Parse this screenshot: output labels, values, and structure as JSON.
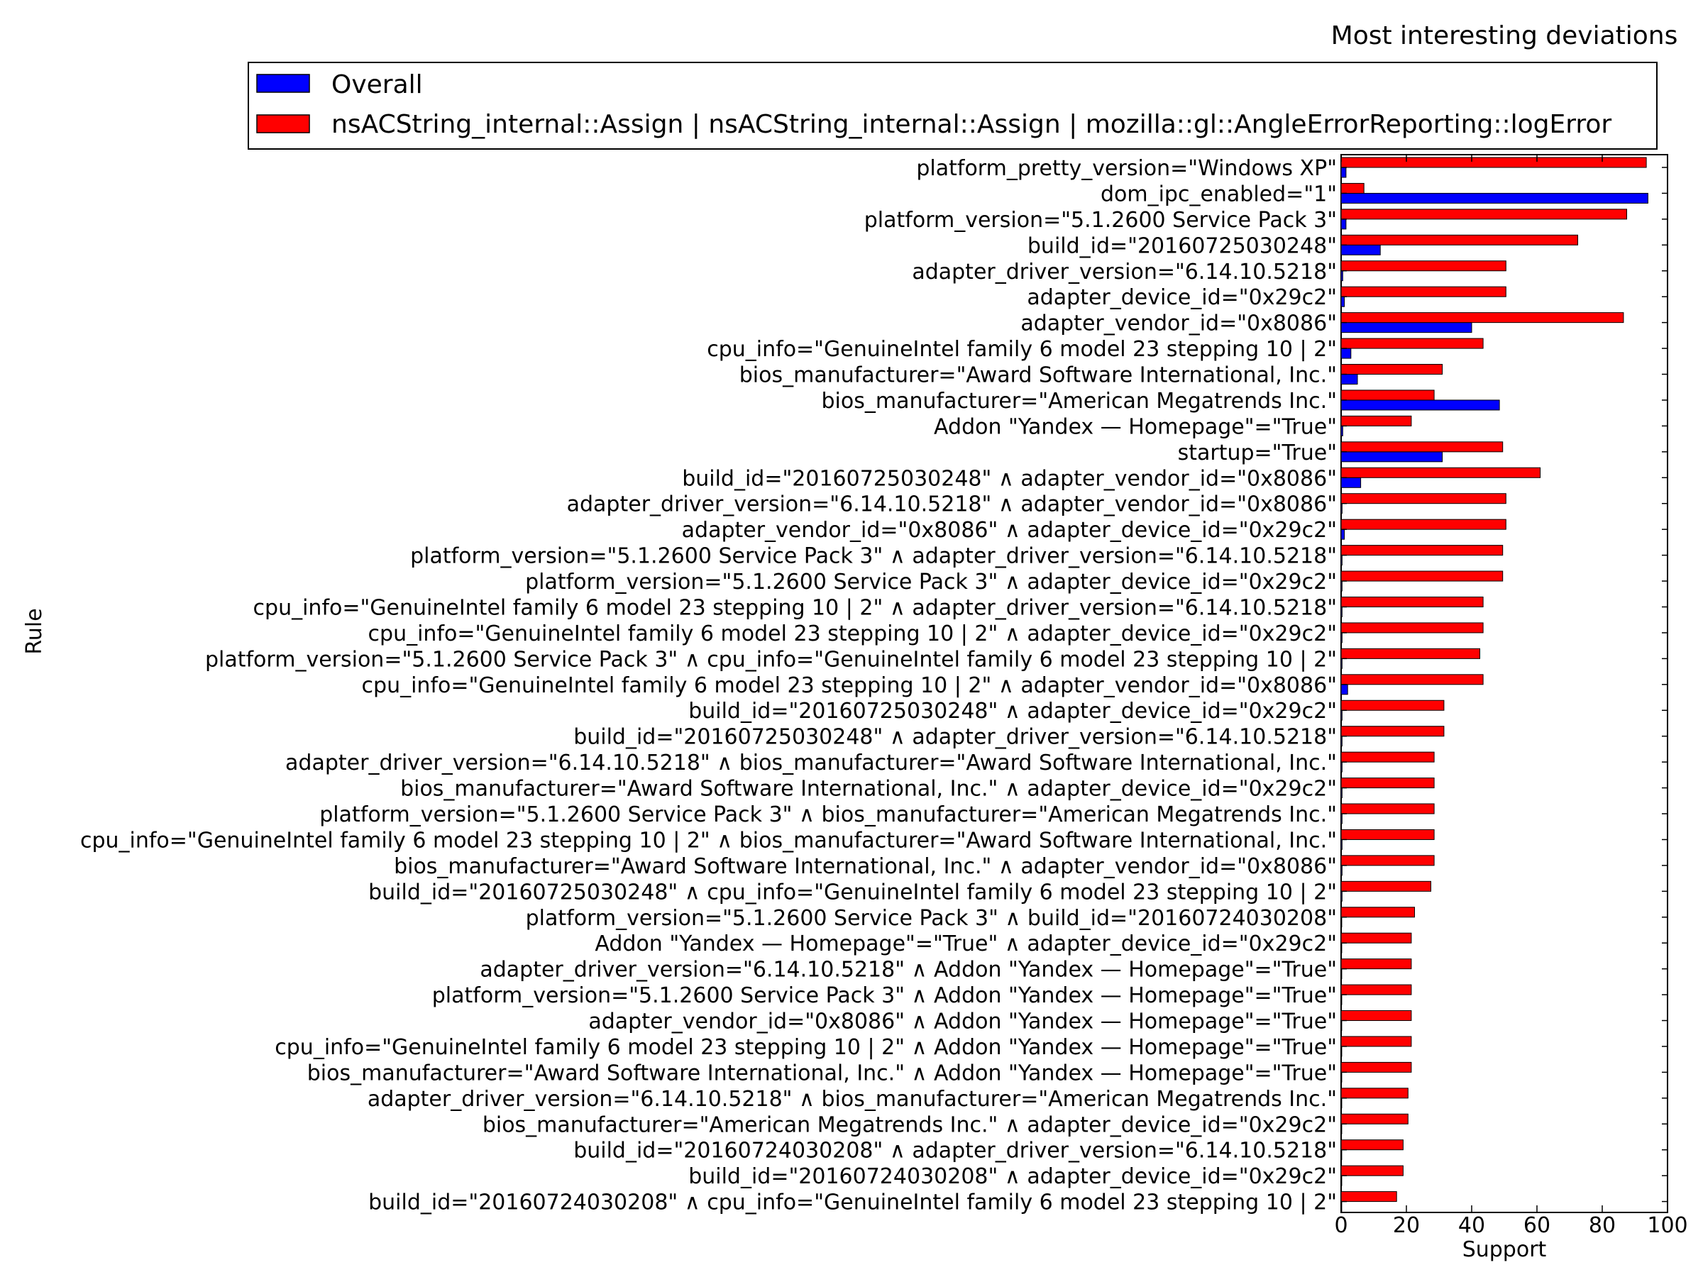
{
  "chart_data": {
    "type": "bar",
    "orientation": "horizontal",
    "title": "Most interesting deviations",
    "xlabel": "Support",
    "ylabel": "Rule",
    "xlim": [
      0,
      100
    ],
    "xticks": [
      0,
      20,
      40,
      60,
      80,
      100
    ],
    "grid": false,
    "legend_position": "top",
    "categories": [
      "platform_pretty_version=\"Windows XP\"",
      "dom_ipc_enabled=\"1\"",
      "platform_version=\"5.1.2600 Service Pack 3\"",
      "build_id=\"20160725030248\"",
      "adapter_driver_version=\"6.14.10.5218\"",
      "adapter_device_id=\"0x29c2\"",
      "adapter_vendor_id=\"0x8086\"",
      "cpu_info=\"GenuineIntel family 6 model 23 stepping 10 | 2\"",
      "bios_manufacturer=\"Award Software International, Inc.\"",
      "bios_manufacturer=\"American Megatrends Inc.\"",
      "Addon \"Yandex — Homepage\"=\"True\"",
      "startup=\"True\"",
      "build_id=\"20160725030248\" ∧ adapter_vendor_id=\"0x8086\"",
      "adapter_driver_version=\"6.14.10.5218\" ∧ adapter_vendor_id=\"0x8086\"",
      "adapter_vendor_id=\"0x8086\" ∧ adapter_device_id=\"0x29c2\"",
      "platform_version=\"5.1.2600 Service Pack 3\" ∧ adapter_driver_version=\"6.14.10.5218\"",
      "platform_version=\"5.1.2600 Service Pack 3\" ∧ adapter_device_id=\"0x29c2\"",
      "cpu_info=\"GenuineIntel family 6 model 23 stepping 10 | 2\" ∧ adapter_driver_version=\"6.14.10.5218\"",
      "cpu_info=\"GenuineIntel family 6 model 23 stepping 10 | 2\" ∧ adapter_device_id=\"0x29c2\"",
      "platform_version=\"5.1.2600 Service Pack 3\" ∧ cpu_info=\"GenuineIntel family 6 model 23 stepping 10 | 2\"",
      "cpu_info=\"GenuineIntel family 6 model 23 stepping 10 | 2\" ∧ adapter_vendor_id=\"0x8086\"",
      "build_id=\"20160725030248\" ∧ adapter_device_id=\"0x29c2\"",
      "build_id=\"20160725030248\" ∧ adapter_driver_version=\"6.14.10.5218\"",
      "adapter_driver_version=\"6.14.10.5218\" ∧ bios_manufacturer=\"Award Software International, Inc.\"",
      "bios_manufacturer=\"Award Software International, Inc.\" ∧ adapter_device_id=\"0x29c2\"",
      "platform_version=\"5.1.2600 Service Pack 3\" ∧ bios_manufacturer=\"American Megatrends Inc.\"",
      "cpu_info=\"GenuineIntel family 6 model 23 stepping 10 | 2\" ∧ bios_manufacturer=\"Award Software International, Inc.\"",
      "bios_manufacturer=\"Award Software International, Inc.\" ∧ adapter_vendor_id=\"0x8086\"",
      "build_id=\"20160725030248\" ∧ cpu_info=\"GenuineIntel family 6 model 23 stepping 10 | 2\"",
      "platform_version=\"5.1.2600 Service Pack 3\" ∧ build_id=\"20160724030208\"",
      "Addon \"Yandex — Homepage\"=\"True\" ∧ adapter_device_id=\"0x29c2\"",
      "adapter_driver_version=\"6.14.10.5218\" ∧ Addon \"Yandex — Homepage\"=\"True\"",
      "platform_version=\"5.1.2600 Service Pack 3\" ∧ Addon \"Yandex — Homepage\"=\"True\"",
      "adapter_vendor_id=\"0x8086\" ∧ Addon \"Yandex — Homepage\"=\"True\"",
      "cpu_info=\"GenuineIntel family 6 model 23 stepping 10 | 2\" ∧ Addon \"Yandex — Homepage\"=\"True\"",
      "bios_manufacturer=\"Award Software International, Inc.\" ∧ Addon \"Yandex — Homepage\"=\"True\"",
      "adapter_driver_version=\"6.14.10.5218\" ∧ bios_manufacturer=\"American Megatrends Inc.\"",
      "bios_manufacturer=\"American Megatrends Inc.\" ∧ adapter_device_id=\"0x29c2\"",
      "build_id=\"20160724030208\" ∧ adapter_driver_version=\"6.14.10.5218\"",
      "build_id=\"20160724030208\" ∧ adapter_device_id=\"0x29c2\"",
      "build_id=\"20160724030208\" ∧ cpu_info=\"GenuineIntel family 6 model 23 stepping 10 | 2\""
    ],
    "series": [
      {
        "name": "Overall",
        "color": "#0000ff",
        "values": [
          1.5,
          94,
          1.5,
          12,
          0.5,
          1,
          40,
          3,
          5,
          48.5,
          0.5,
          31,
          6,
          0.3,
          1,
          0.3,
          0.3,
          0.3,
          0.3,
          0.3,
          2,
          0.3,
          0.3,
          0.3,
          0.3,
          0.3,
          0.3,
          0.3,
          0.3,
          0.2,
          0.2,
          0.2,
          0.2,
          0.2,
          0.2,
          0.2,
          0.2,
          0.2,
          0.2,
          0.2,
          0.2
        ]
      },
      {
        "name": "nsACString_internal::Assign | nsACString_internal::Assign | mozilla::gl::AngleErrorReporting::logError",
        "color": "#ff0000",
        "values": [
          93.5,
          7,
          87.5,
          72.5,
          50.5,
          50.5,
          86.5,
          43.5,
          31,
          28.5,
          21.5,
          49.5,
          61,
          50.5,
          50.5,
          49.5,
          49.5,
          43.5,
          43.5,
          42.5,
          43.5,
          31.5,
          31.5,
          28.5,
          28.5,
          28.5,
          28.5,
          28.5,
          27.5,
          22.5,
          21.5,
          21.5,
          21.5,
          21.5,
          21.5,
          21.5,
          20.5,
          20.5,
          19,
          19,
          17
        ]
      }
    ]
  }
}
